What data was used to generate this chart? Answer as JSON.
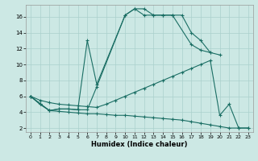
{
  "xlabel": "Humidex (Indice chaleur)",
  "bg_color": "#cce8e4",
  "grid_color": "#aad0cc",
  "line_color": "#1a6e64",
  "xlim": [
    -0.5,
    23.5
  ],
  "ylim": [
    1.5,
    17.5
  ],
  "xticks": [
    0,
    1,
    2,
    3,
    4,
    5,
    6,
    7,
    8,
    9,
    10,
    11,
    12,
    13,
    14,
    15,
    16,
    17,
    18,
    19,
    20,
    21,
    22,
    23
  ],
  "yticks": [
    2,
    4,
    6,
    8,
    10,
    12,
    14,
    16
  ],
  "line1_x": [
    0,
    1,
    2,
    3,
    4,
    5,
    6,
    7,
    10,
    11,
    12,
    13,
    14,
    15,
    16,
    17,
    18,
    19
  ],
  "line1_y": [
    6.0,
    5.0,
    4.2,
    4.4,
    4.4,
    4.3,
    13.0,
    7.5,
    16.2,
    17.0,
    17.0,
    16.2,
    16.2,
    16.2,
    16.2,
    14.0,
    13.0,
    11.5
  ],
  "line2_x": [
    0,
    2,
    3,
    4,
    5,
    6,
    7,
    10,
    11,
    12,
    13,
    14,
    15,
    17,
    18,
    19,
    20
  ],
  "line2_y": [
    6.0,
    4.2,
    4.4,
    4.4,
    4.3,
    4.3,
    7.2,
    16.2,
    17.0,
    16.2,
    16.2,
    16.2,
    16.2,
    12.5,
    11.8,
    11.5,
    11.2
  ],
  "line3_x": [
    0,
    1,
    2,
    3,
    4,
    5,
    6,
    7,
    8,
    9,
    10,
    11,
    12,
    13,
    14,
    15,
    16,
    17,
    18,
    19,
    20,
    21,
    22,
    23
  ],
  "line3_y": [
    6.0,
    5.5,
    5.2,
    5.0,
    4.9,
    4.8,
    4.7,
    4.6,
    5.0,
    5.5,
    6.0,
    6.5,
    7.0,
    7.5,
    8.0,
    8.5,
    9.0,
    9.5,
    10.0,
    10.5,
    3.6,
    5.0,
    2.0,
    2.0
  ],
  "line4_x": [
    0,
    1,
    2,
    3,
    4,
    5,
    6,
    7,
    8,
    9,
    10,
    11,
    12,
    13,
    14,
    15,
    16,
    17,
    18,
    19,
    20,
    21,
    22,
    23
  ],
  "line4_y": [
    6.0,
    5.0,
    4.2,
    4.1,
    4.0,
    3.9,
    3.8,
    3.8,
    3.7,
    3.6,
    3.6,
    3.5,
    3.4,
    3.3,
    3.2,
    3.1,
    3.0,
    2.8,
    2.6,
    2.4,
    2.2,
    2.0,
    2.0,
    2.0
  ]
}
